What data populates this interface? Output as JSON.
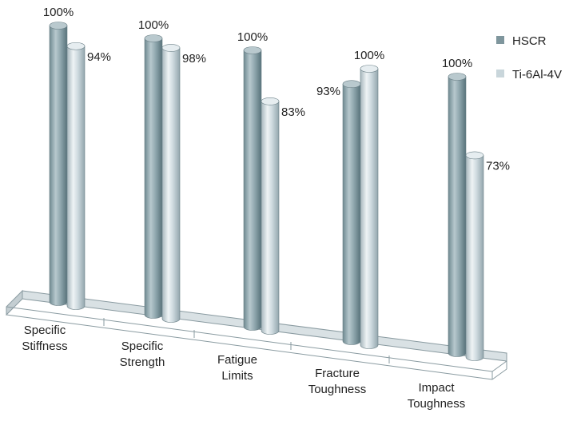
{
  "chart_data": {
    "type": "bar",
    "style": "3d-cylinder",
    "categories": [
      [
        "Specific",
        "Stiffness"
      ],
      [
        "Specific",
        "Strength"
      ],
      [
        "Fatigue",
        "Limits"
      ],
      [
        "Fracture",
        "Toughness"
      ],
      [
        "Impact",
        "Toughness"
      ]
    ],
    "series": [
      {
        "name": "HSCR",
        "values": [
          100,
          100,
          100,
          93,
          100
        ],
        "labels": [
          "100%",
          "100%",
          "100%",
          "93%",
          "100%"
        ],
        "color": "#93aab1"
      },
      {
        "name": "Ti-6Al-4V",
        "values": [
          94,
          98,
          83,
          100,
          73
        ],
        "labels": [
          "94%",
          "98%",
          "83%",
          "100%",
          "73%"
        ],
        "color": "#c9d6db"
      }
    ],
    "ylim": [
      0,
      100
    ],
    "grid": false,
    "legend": "top-right"
  }
}
